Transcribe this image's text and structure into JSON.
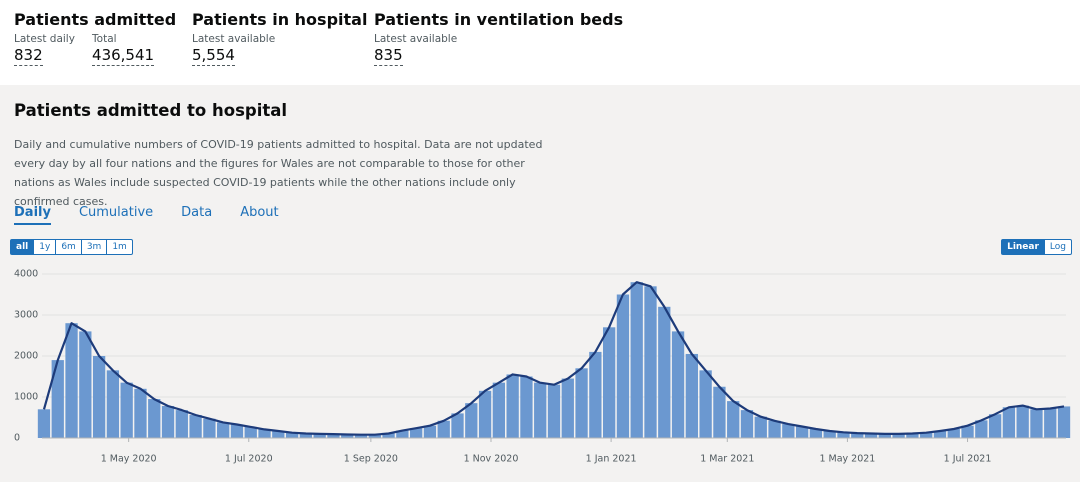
{
  "headline": [
    {
      "title": "Patients admitted",
      "metrics": [
        {
          "label": "Latest daily",
          "value": "832"
        },
        {
          "label": "Total",
          "value": "436,541"
        }
      ]
    },
    {
      "title": "Patients in hospital",
      "metrics": [
        {
          "label": "Latest available",
          "value": "5,554"
        }
      ]
    },
    {
      "title": "Patients in ventilation beds",
      "metrics": [
        {
          "label": "Latest available",
          "value": "835"
        }
      ]
    }
  ],
  "card": {
    "title": "Patients admitted to hospital",
    "description": "Daily and cumulative numbers of COVID-19 patients admitted to hospital. Data are not updated every day by all four nations and the figures for Wales are not comparable to those for other nations as Wales include suspected COVID-19 patients while the other nations include only confirmed cases.",
    "tabs": [
      "Daily",
      "Cumulative",
      "Data",
      "About"
    ],
    "range_buttons": [
      "all",
      "1y",
      "6m",
      "3m",
      "1m"
    ],
    "scale_buttons": [
      "Linear",
      "Log"
    ]
  },
  "chart_data": {
    "type": "bar",
    "color": "#6b98d0",
    "line_color": "#1d3b7a",
    "log_scale": false,
    "grid": true,
    "x": [
      "2020-03-19",
      "2020-03-26",
      "2020-04-02",
      "2020-04-09",
      "2020-04-16",
      "2020-04-23",
      "2020-04-30",
      "2020-05-07",
      "2020-05-14",
      "2020-05-21",
      "2020-05-28",
      "2020-06-04",
      "2020-06-11",
      "2020-06-18",
      "2020-06-25",
      "2020-07-02",
      "2020-07-09",
      "2020-07-16",
      "2020-07-23",
      "2020-07-30",
      "2020-08-06",
      "2020-08-13",
      "2020-08-20",
      "2020-08-27",
      "2020-09-03",
      "2020-09-10",
      "2020-09-17",
      "2020-09-24",
      "2020-10-01",
      "2020-10-08",
      "2020-10-15",
      "2020-10-22",
      "2020-10-29",
      "2020-11-05",
      "2020-11-12",
      "2020-11-19",
      "2020-11-26",
      "2020-12-03",
      "2020-12-10",
      "2020-12-17",
      "2020-12-24",
      "2020-12-31",
      "2021-01-07",
      "2021-01-14",
      "2021-01-21",
      "2021-01-28",
      "2021-02-04",
      "2021-02-11",
      "2021-02-18",
      "2021-02-25",
      "2021-03-04",
      "2021-03-11",
      "2021-03-18",
      "2021-03-25",
      "2021-04-01",
      "2021-04-08",
      "2021-04-15",
      "2021-04-22",
      "2021-04-29",
      "2021-05-06",
      "2021-05-13",
      "2021-05-20",
      "2021-05-27",
      "2021-06-03",
      "2021-06-10",
      "2021-06-17",
      "2021-06-24",
      "2021-07-01",
      "2021-07-08",
      "2021-07-15",
      "2021-07-22",
      "2021-07-29",
      "2021-08-05",
      "2021-08-12",
      "2021-08-19"
    ],
    "values": [
      700,
      1900,
      2800,
      2600,
      2000,
      1650,
      1350,
      1200,
      950,
      780,
      680,
      560,
      470,
      380,
      330,
      270,
      210,
      170,
      130,
      110,
      100,
      95,
      85,
      80,
      80,
      110,
      180,
      240,
      300,
      420,
      600,
      850,
      1150,
      1350,
      1550,
      1500,
      1350,
      1300,
      1450,
      1700,
      2100,
      2700,
      3500,
      3800,
      3700,
      3200,
      2600,
      2050,
      1650,
      1250,
      900,
      680,
      520,
      420,
      340,
      280,
      220,
      170,
      140,
      120,
      110,
      100,
      100,
      110,
      130,
      170,
      220,
      300,
      430,
      580,
      750,
      790,
      700,
      720,
      770
    ],
    "xlim": [
      "2020-03-18",
      "2021-08-20"
    ],
    "xticks": [
      {
        "value": "2020-05-01",
        "label": "1 May 2020"
      },
      {
        "value": "2020-07-01",
        "label": "1 Jul 2020"
      },
      {
        "value": "2020-09-01",
        "label": "1 Sep 2020"
      },
      {
        "value": "2020-11-01",
        "label": "1 Nov 2020"
      },
      {
        "value": "2021-01-01",
        "label": "1 Jan 2021"
      },
      {
        "value": "2021-03-01",
        "label": "1 Mar 2021"
      },
      {
        "value": "2021-05-01",
        "label": "1 May 2021"
      },
      {
        "value": "2021-07-01",
        "label": "1 Jul 2021"
      }
    ],
    "ylim": [
      0,
      4000
    ],
    "yticks": [
      0,
      1000,
      2000,
      3000,
      4000
    ]
  }
}
